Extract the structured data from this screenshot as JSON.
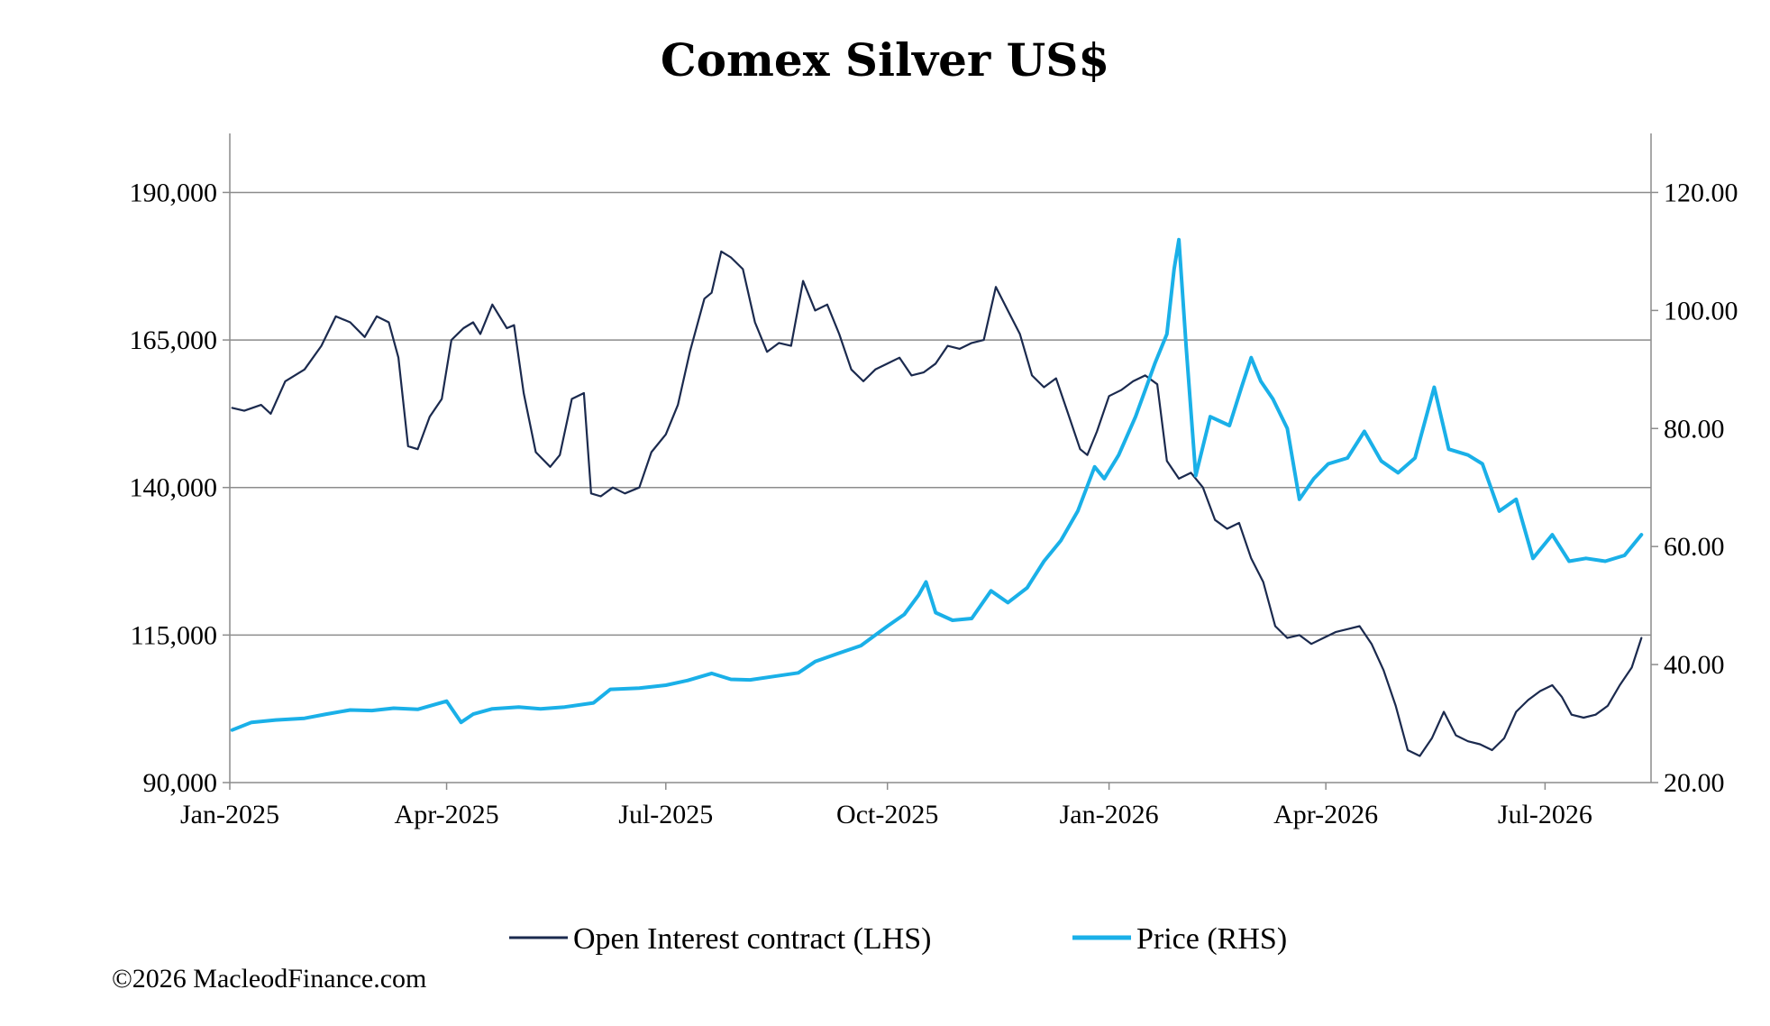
{
  "chart_data": {
    "type": "line",
    "title": "Comex Silver US$",
    "x_ticks": [
      "Jan-2025",
      "Apr-2025",
      "Jul-2025",
      "Oct-2025",
      "Jan-2026",
      "Apr-2026",
      "Jul-2026"
    ],
    "x_range": [
      "Jan-2025",
      "Aug-2026"
    ],
    "y_left": {
      "range": [
        90000,
        200000
      ],
      "ticks": [
        "90,000",
        "115,000",
        "140,000",
        "165,000",
        "190,000"
      ],
      "tick_values": [
        90000,
        115000,
        140000,
        165000,
        190000
      ]
    },
    "y_right": {
      "range": [
        20,
        130
      ],
      "ticks": [
        "20.00",
        "40.00",
        "60.00",
        "80.00",
        "100.00",
        "120.00"
      ],
      "tick_values": [
        20,
        40,
        60,
        80,
        100,
        120
      ]
    },
    "grid": "horizontal",
    "legend_position": "bottom",
    "series": [
      {
        "name": "Open Interest contract (LHS)",
        "axis": "left",
        "color": "#1b2a4e",
        "points": [
          [
            "2025-01-02",
            153500
          ],
          [
            "2025-01-07",
            153000
          ],
          [
            "2025-01-14",
            154000
          ],
          [
            "2025-01-18",
            152500
          ],
          [
            "2025-01-24",
            158000
          ],
          [
            "2025-02-01",
            160000
          ],
          [
            "2025-02-08",
            164000
          ],
          [
            "2025-02-14",
            169000
          ],
          [
            "2025-02-20",
            168000
          ],
          [
            "2025-02-26",
            165500
          ],
          [
            "2025-03-03",
            169000
          ],
          [
            "2025-03-08",
            168000
          ],
          [
            "2025-03-12",
            162000
          ],
          [
            "2025-03-16",
            147000
          ],
          [
            "2025-03-20",
            146500
          ],
          [
            "2025-03-25",
            152000
          ],
          [
            "2025-03-30",
            155000
          ],
          [
            "2025-04-03",
            165000
          ],
          [
            "2025-04-08",
            167000
          ],
          [
            "2025-04-12",
            168000
          ],
          [
            "2025-04-15",
            166000
          ],
          [
            "2025-04-20",
            171000
          ],
          [
            "2025-04-26",
            167000
          ],
          [
            "2025-04-29",
            167500
          ],
          [
            "2025-05-03",
            156000
          ],
          [
            "2025-05-08",
            146000
          ],
          [
            "2025-05-14",
            143500
          ],
          [
            "2025-05-18",
            145500
          ],
          [
            "2025-05-23",
            155000
          ],
          [
            "2025-05-28",
            156000
          ],
          [
            "2025-05-31",
            139000
          ],
          [
            "2025-06-04",
            138500
          ],
          [
            "2025-06-09",
            140000
          ],
          [
            "2025-06-14",
            139000
          ],
          [
            "2025-06-20",
            140000
          ],
          [
            "2025-06-25",
            146000
          ],
          [
            "2025-07-01",
            149000
          ],
          [
            "2025-07-06",
            154000
          ],
          [
            "2025-07-11",
            163000
          ],
          [
            "2025-07-17",
            172000
          ],
          [
            "2025-07-20",
            173000
          ],
          [
            "2025-07-24",
            180000
          ],
          [
            "2025-07-28",
            179000
          ],
          [
            "2025-08-02",
            177000
          ],
          [
            "2025-08-07",
            168000
          ],
          [
            "2025-08-12",
            163000
          ],
          [
            "2025-08-17",
            164500
          ],
          [
            "2025-08-22",
            164000
          ],
          [
            "2025-08-27",
            175000
          ],
          [
            "2025-09-01",
            170000
          ],
          [
            "2025-09-06",
            171000
          ],
          [
            "2025-09-11",
            166000
          ],
          [
            "2025-09-16",
            160000
          ],
          [
            "2025-09-21",
            158000
          ],
          [
            "2025-09-26",
            160000
          ],
          [
            "2025-10-01",
            161000
          ],
          [
            "2025-10-06",
            162000
          ],
          [
            "2025-10-11",
            159000
          ],
          [
            "2025-10-16",
            159500
          ],
          [
            "2025-10-21",
            161000
          ],
          [
            "2025-10-26",
            164000
          ],
          [
            "2025-10-31",
            163500
          ],
          [
            "2025-11-05",
            164500
          ],
          [
            "2025-11-10",
            165000
          ],
          [
            "2025-11-15",
            174000
          ],
          [
            "2025-11-20",
            170000
          ],
          [
            "2025-11-25",
            166000
          ],
          [
            "2025-11-30",
            159000
          ],
          [
            "2025-12-05",
            157000
          ],
          [
            "2025-12-10",
            158500
          ],
          [
            "2025-12-15",
            152500
          ],
          [
            "2025-12-20",
            146500
          ],
          [
            "2025-12-23",
            145500
          ],
          [
            "2025-12-27",
            149500
          ],
          [
            "2026-01-01",
            155500
          ],
          [
            "2026-01-06",
            156500
          ],
          [
            "2026-01-11",
            158000
          ],
          [
            "2026-01-16",
            159000
          ],
          [
            "2026-01-21",
            157500
          ],
          [
            "2026-01-25",
            144500
          ],
          [
            "2026-01-30",
            141500
          ],
          [
            "2026-02-04",
            142500
          ],
          [
            "2026-02-09",
            140000
          ],
          [
            "2026-02-14",
            134500
          ],
          [
            "2026-02-19",
            133000
          ],
          [
            "2026-02-24",
            134000
          ],
          [
            "2026-03-01",
            128000
          ],
          [
            "2026-03-06",
            124000
          ],
          [
            "2026-03-11",
            116500
          ],
          [
            "2026-03-16",
            114500
          ],
          [
            "2026-03-21",
            115000
          ],
          [
            "2026-03-26",
            113500
          ],
          [
            "2026-03-31",
            114500
          ],
          [
            "2026-04-05",
            115500
          ],
          [
            "2026-04-10",
            116000
          ],
          [
            "2026-04-15",
            116500
          ],
          [
            "2026-04-20",
            113500
          ],
          [
            "2026-04-25",
            109000
          ],
          [
            "2026-04-30",
            103000
          ],
          [
            "2026-05-05",
            95500
          ],
          [
            "2026-05-10",
            94500
          ],
          [
            "2026-05-15",
            97500
          ],
          [
            "2026-05-20",
            102000
          ],
          [
            "2026-05-25",
            98000
          ],
          [
            "2026-05-30",
            97000
          ],
          [
            "2026-06-04",
            96500
          ],
          [
            "2026-06-09",
            95500
          ],
          [
            "2026-06-14",
            97500
          ],
          [
            "2026-06-19",
            102000
          ],
          [
            "2026-06-24",
            104000
          ],
          [
            "2026-06-29",
            105500
          ],
          [
            "2026-07-04",
            106500
          ],
          [
            "2026-07-08",
            104500
          ],
          [
            "2026-07-12",
            101500
          ],
          [
            "2026-07-17",
            101000
          ],
          [
            "2026-07-22",
            101500
          ],
          [
            "2026-07-27",
            103000
          ],
          [
            "2026-08-01",
            106500
          ],
          [
            "2026-08-06",
            109500
          ],
          [
            "2026-08-10",
            114500
          ]
        ]
      },
      {
        "name": "Price (RHS)",
        "axis": "right",
        "color": "#1ab0e8",
        "points": [
          [
            "2025-01-02",
            28.9
          ],
          [
            "2025-01-10",
            30.2
          ],
          [
            "2025-01-20",
            30.6
          ],
          [
            "2025-02-01",
            30.9
          ],
          [
            "2025-02-10",
            31.6
          ],
          [
            "2025-02-20",
            32.3
          ],
          [
            "2025-03-01",
            32.2
          ],
          [
            "2025-03-10",
            32.6
          ],
          [
            "2025-03-20",
            32.4
          ],
          [
            "2025-04-01",
            33.8
          ],
          [
            "2025-04-07",
            30.2
          ],
          [
            "2025-04-12",
            31.6
          ],
          [
            "2025-04-20",
            32.5
          ],
          [
            "2025-05-01",
            32.8
          ],
          [
            "2025-05-10",
            32.5
          ],
          [
            "2025-05-20",
            32.8
          ],
          [
            "2025-06-01",
            33.5
          ],
          [
            "2025-06-08",
            35.8
          ],
          [
            "2025-06-20",
            36.0
          ],
          [
            "2025-07-01",
            36.5
          ],
          [
            "2025-07-10",
            37.3
          ],
          [
            "2025-07-20",
            38.5
          ],
          [
            "2025-07-28",
            37.5
          ],
          [
            "2025-08-05",
            37.4
          ],
          [
            "2025-08-15",
            38.0
          ],
          [
            "2025-08-25",
            38.6
          ],
          [
            "2025-09-01",
            40.5
          ],
          [
            "2025-09-10",
            41.8
          ],
          [
            "2025-09-20",
            43.2
          ],
          [
            "2025-10-01",
            46.5
          ],
          [
            "2025-10-08",
            48.5
          ],
          [
            "2025-10-14",
            51.8
          ],
          [
            "2025-10-17",
            54.0
          ],
          [
            "2025-10-21",
            48.8
          ],
          [
            "2025-10-28",
            47.5
          ],
          [
            "2025-11-05",
            47.8
          ],
          [
            "2025-11-13",
            52.5
          ],
          [
            "2025-11-20",
            50.5
          ],
          [
            "2025-11-28",
            53.0
          ],
          [
            "2025-12-05",
            57.5
          ],
          [
            "2025-12-12",
            61.0
          ],
          [
            "2025-12-19",
            66.0
          ],
          [
            "2025-12-26",
            73.5
          ],
          [
            "2025-12-30",
            71.5
          ],
          [
            "2026-01-05",
            75.5
          ],
          [
            "2026-01-12",
            82.0
          ],
          [
            "2026-01-20",
            91.0
          ],
          [
            "2026-01-25",
            96.0
          ],
          [
            "2026-01-28",
            107.0
          ],
          [
            "2026-01-30",
            112.0
          ],
          [
            "2026-02-02",
            94.0
          ],
          [
            "2026-02-06",
            72.0
          ],
          [
            "2026-02-12",
            82.0
          ],
          [
            "2026-02-20",
            80.5
          ],
          [
            "2026-02-25",
            87.0
          ],
          [
            "2026-03-01",
            92.0
          ],
          [
            "2026-03-05",
            88.0
          ],
          [
            "2026-03-10",
            85.0
          ],
          [
            "2026-03-16",
            80.0
          ],
          [
            "2026-03-21",
            68.0
          ],
          [
            "2026-03-27",
            71.5
          ],
          [
            "2026-04-02",
            74.0
          ],
          [
            "2026-04-10",
            75.0
          ],
          [
            "2026-04-17",
            79.5
          ],
          [
            "2026-04-24",
            74.5
          ],
          [
            "2026-05-01",
            72.5
          ],
          [
            "2026-05-08",
            75.0
          ],
          [
            "2026-05-16",
            87.0
          ],
          [
            "2026-05-22",
            76.5
          ],
          [
            "2026-05-30",
            75.5
          ],
          [
            "2026-06-05",
            74.0
          ],
          [
            "2026-06-12",
            66.0
          ],
          [
            "2026-06-19",
            68.0
          ],
          [
            "2026-06-26",
            58.0
          ],
          [
            "2026-07-04",
            62.0
          ],
          [
            "2026-07-11",
            57.5
          ],
          [
            "2026-07-18",
            58.0
          ],
          [
            "2026-07-26",
            57.5
          ],
          [
            "2026-08-03",
            58.5
          ],
          [
            "2026-08-10",
            62.0
          ]
        ]
      }
    ]
  },
  "legend": {
    "items": [
      {
        "label": "Open Interest contract (LHS)",
        "color": "#1b2a4e"
      },
      {
        "label": "Price (RHS)",
        "color": "#1ab0e8"
      }
    ]
  },
  "footer": {
    "copyright": "©2026 MacleodFinance.com"
  }
}
